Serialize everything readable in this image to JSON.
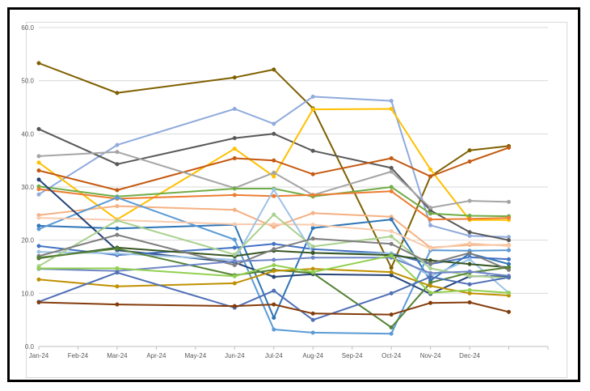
{
  "chart_data": {
    "type": "line",
    "title": "",
    "xlabel": "",
    "ylabel": "",
    "x_ticks": [
      "Jan-24",
      "Feb-24",
      "Mar-24",
      "Apr-24",
      "May-24",
      "Jun-24",
      "Jul-24",
      "Aug-24",
      "Sep-24",
      "Oct-24",
      "Nov-24",
      "Dec-24"
    ],
    "y_ticks": [
      "0.0",
      "10.0",
      "20.0",
      "30.0",
      "40.0",
      "50.0",
      "60.0"
    ],
    "ylim": [
      0,
      60
    ],
    "grid": "horizontal",
    "x_extra_periods": 1,
    "series": [
      {
        "color": "#7f6000",
        "points": [
          [
            0,
            53.3
          ],
          [
            2,
            47.7
          ],
          [
            5,
            50.6
          ],
          [
            6,
            52.1
          ],
          [
            7,
            44.8
          ],
          [
            9,
            14.8
          ],
          [
            10,
            32.0
          ],
          [
            11,
            36.9
          ],
          [
            12,
            37.7
          ]
        ]
      },
      {
        "color": "#8faadc",
        "points": [
          [
            0,
            28.6
          ],
          [
            2,
            37.9
          ],
          [
            5,
            44.7
          ],
          [
            6,
            41.9
          ],
          [
            7,
            47.0
          ],
          [
            9,
            46.2
          ],
          [
            10,
            22.8
          ],
          [
            11,
            20.8
          ],
          [
            12,
            20.6
          ]
        ]
      },
      {
        "color": "#595959",
        "points": [
          [
            0,
            40.9
          ],
          [
            2,
            34.3
          ],
          [
            5,
            39.2
          ],
          [
            6,
            40.0
          ],
          [
            7,
            36.8
          ],
          [
            9,
            33.6
          ],
          [
            10,
            25.6
          ],
          [
            11,
            21.5
          ],
          [
            12,
            20.0
          ]
        ]
      },
      {
        "color": "#ffc000",
        "points": [
          [
            0,
            34.6
          ],
          [
            2,
            23.9
          ],
          [
            5,
            37.2
          ],
          [
            6,
            32.0
          ],
          [
            7,
            44.6
          ],
          [
            9,
            44.7
          ],
          [
            10,
            33.3
          ],
          [
            11,
            23.8
          ],
          [
            12,
            23.8
          ]
        ]
      },
      {
        "color": "#c55a11",
        "points": [
          [
            0,
            33.1
          ],
          [
            2,
            29.4
          ],
          [
            5,
            35.4
          ],
          [
            6,
            35.0
          ],
          [
            7,
            32.4
          ],
          [
            9,
            35.4
          ],
          [
            10,
            32.0
          ],
          [
            11,
            34.8
          ],
          [
            12,
            37.4
          ]
        ]
      },
      {
        "color": "#a5a5a5",
        "points": [
          [
            0,
            35.8
          ],
          [
            2,
            36.6
          ],
          [
            5,
            29.8
          ],
          [
            6,
            32.7
          ],
          [
            7,
            28.5
          ],
          [
            9,
            32.9
          ],
          [
            10,
            26.1
          ],
          [
            11,
            27.4
          ],
          [
            12,
            27.2
          ]
        ]
      },
      {
        "color": "#70ad47",
        "points": [
          [
            0,
            30.1
          ],
          [
            2,
            28.2
          ],
          [
            5,
            29.7
          ],
          [
            6,
            29.7
          ],
          [
            7,
            28.2
          ],
          [
            9,
            30.0
          ],
          [
            10,
            25.0
          ],
          [
            11,
            24.6
          ],
          [
            12,
            24.5
          ]
        ]
      },
      {
        "color": "#ed7d31",
        "points": [
          [
            0,
            29.6
          ],
          [
            2,
            27.8
          ],
          [
            5,
            28.5
          ],
          [
            6,
            28.3
          ],
          [
            7,
            28.5
          ],
          [
            9,
            29.2
          ],
          [
            10,
            23.9
          ],
          [
            11,
            24.0
          ],
          [
            12,
            24.2
          ]
        ]
      },
      {
        "color": "#f4b183",
        "points": [
          [
            0,
            24.7
          ],
          [
            2,
            26.4
          ],
          [
            5,
            25.7
          ],
          [
            6,
            22.5
          ],
          [
            7,
            25.1
          ],
          [
            9,
            24.4
          ],
          [
            10,
            18.6
          ],
          [
            11,
            19.1
          ],
          [
            12,
            19.1
          ]
        ]
      },
      {
        "color": "#2e75b6",
        "points": [
          [
            0,
            22.7
          ],
          [
            2,
            22.2
          ],
          [
            5,
            22.9
          ],
          [
            6,
            5.4
          ],
          [
            7,
            22.3
          ],
          [
            9,
            23.9
          ],
          [
            10,
            12.4
          ],
          [
            11,
            17.5
          ],
          [
            12,
            15.5
          ]
        ]
      },
      {
        "color": "#5b9bd5",
        "points": [
          [
            0,
            22.1
          ],
          [
            2,
            28.0
          ],
          [
            5,
            20.1
          ],
          [
            6,
            3.2
          ],
          [
            7,
            2.6
          ],
          [
            9,
            2.4
          ],
          [
            10,
            18.1
          ],
          [
            11,
            18.0
          ],
          [
            12,
            18.1
          ]
        ]
      },
      {
        "color": "#f8cbad",
        "points": [
          [
            0,
            24.2
          ],
          [
            2,
            23.8
          ],
          [
            5,
            23.0
          ],
          [
            6,
            23.0
          ],
          [
            7,
            22.9
          ],
          [
            9,
            21.7
          ],
          [
            10,
            18.4
          ],
          [
            11,
            19.4
          ],
          [
            12,
            18.9
          ]
        ]
      },
      {
        "color": "#264478",
        "points": [
          [
            0,
            31.4
          ],
          [
            2,
            18.1
          ],
          [
            5,
            15.8
          ],
          [
            6,
            13.1
          ],
          [
            7,
            13.6
          ],
          [
            9,
            13.4
          ],
          [
            10,
            9.9
          ],
          [
            11,
            13.2
          ],
          [
            12,
            13.2
          ]
        ]
      },
      {
        "color": "#4472c4",
        "points": [
          [
            0,
            18.9
          ],
          [
            2,
            17.2
          ],
          [
            5,
            18.6
          ],
          [
            6,
            19.3
          ],
          [
            7,
            18.3
          ],
          [
            9,
            17.5
          ],
          [
            10,
            15.5
          ],
          [
            11,
            16.8
          ],
          [
            12,
            16.4
          ]
        ]
      },
      {
        "color": "#9dc3e6",
        "points": [
          [
            0,
            17.8
          ],
          [
            2,
            17.5
          ],
          [
            5,
            16.3
          ],
          [
            6,
            29.5
          ],
          [
            7,
            17.6
          ],
          [
            9,
            17.5
          ],
          [
            10,
            13.2
          ],
          [
            11,
            16.4
          ],
          [
            12,
            10.1
          ]
        ]
      },
      {
        "color": "#375623",
        "points": [
          [
            0,
            16.6
          ],
          [
            2,
            18.6
          ],
          [
            5,
            17.0
          ],
          [
            6,
            18.0
          ],
          [
            7,
            17.6
          ],
          [
            9,
            17.2
          ],
          [
            10,
            16.2
          ],
          [
            11,
            15.5
          ],
          [
            12,
            14.9
          ]
        ]
      },
      {
        "color": "#a9d18e",
        "points": [
          [
            0,
            15.1
          ],
          [
            2,
            23.7
          ],
          [
            5,
            17.3
          ],
          [
            6,
            24.8
          ],
          [
            7,
            18.8
          ],
          [
            9,
            20.7
          ],
          [
            10,
            14.7
          ],
          [
            11,
            13.3
          ],
          [
            12,
            12.9
          ]
        ]
      },
      {
        "color": "#7f7f7f",
        "points": [
          [
            0,
            17.0
          ],
          [
            2,
            21.0
          ],
          [
            5,
            15.3
          ],
          [
            6,
            18.3
          ],
          [
            7,
            20.3
          ],
          [
            9,
            19.3
          ],
          [
            10,
            15.6
          ],
          [
            11,
            17.6
          ],
          [
            12,
            14.4
          ]
        ]
      },
      {
        "color": "#548235",
        "points": [
          [
            0,
            16.7
          ],
          [
            2,
            18.4
          ],
          [
            5,
            13.4
          ],
          [
            6,
            14.4
          ],
          [
            7,
            13.8
          ],
          [
            9,
            3.6
          ],
          [
            10,
            12.0
          ],
          [
            11,
            13.9
          ],
          [
            12,
            14.9
          ]
        ]
      },
      {
        "color": "#bf9000",
        "points": [
          [
            0,
            12.6
          ],
          [
            2,
            11.3
          ],
          [
            5,
            11.9
          ],
          [
            6,
            14.2
          ],
          [
            7,
            14.6
          ],
          [
            9,
            14.0
          ],
          [
            10,
            11.4
          ],
          [
            11,
            10.0
          ],
          [
            12,
            9.6
          ]
        ]
      },
      {
        "color": "#6f86c6",
        "points": [
          [
            0,
            14.6
          ],
          [
            2,
            14.2
          ],
          [
            5,
            16.0
          ],
          [
            6,
            16.3
          ],
          [
            7,
            16.7
          ],
          [
            9,
            16.7
          ],
          [
            10,
            13.8
          ],
          [
            11,
            14.1
          ],
          [
            12,
            13.3
          ]
        ]
      },
      {
        "color": "#92d050",
        "points": [
          [
            0,
            14.7
          ],
          [
            2,
            14.7
          ],
          [
            5,
            13.2
          ],
          [
            6,
            15.3
          ],
          [
            7,
            14.0
          ],
          [
            9,
            17.1
          ],
          [
            10,
            10.1
          ],
          [
            11,
            10.6
          ],
          [
            12,
            10.1
          ]
        ]
      },
      {
        "color": "#4f6fb5",
        "points": [
          [
            0,
            8.4
          ],
          [
            2,
            13.9
          ],
          [
            5,
            7.3
          ],
          [
            6,
            10.5
          ],
          [
            7,
            5.0
          ],
          [
            9,
            10.0
          ],
          [
            10,
            13.1
          ],
          [
            11,
            11.7
          ],
          [
            12,
            13.0
          ]
        ]
      },
      {
        "color": "#843c0c",
        "points": [
          [
            0,
            8.3
          ],
          [
            2,
            7.9
          ],
          [
            5,
            7.6
          ],
          [
            6,
            7.9
          ],
          [
            7,
            6.2
          ],
          [
            9,
            6.0
          ],
          [
            10,
            8.2
          ],
          [
            11,
            8.3
          ],
          [
            12,
            6.5
          ]
        ]
      }
    ]
  }
}
